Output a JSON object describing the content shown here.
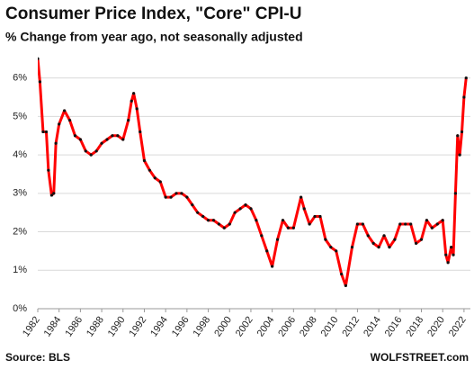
{
  "chart_data": {
    "type": "line",
    "title": "Consumer  Price Index, \"Core\" CPI-U",
    "subtitle": "% Change from year ago, not seasonally adjusted",
    "source": "Source: BLS",
    "brand": "WOLFSTREET.com",
    "xlim": [
      1982,
      2022.6
    ],
    "xticks": [
      1982,
      1984,
      1986,
      1988,
      1990,
      1992,
      1994,
      1996,
      1998,
      2000,
      2002,
      2004,
      2006,
      2008,
      2010,
      2012,
      2014,
      2016,
      2018,
      2020,
      2022
    ],
    "ylim": [
      0,
      6.6
    ],
    "yticks": [
      {
        "value": 0,
        "label": "0%"
      },
      {
        "value": 1,
        "label": "1%"
      },
      {
        "value": 2,
        "label": "2%"
      },
      {
        "value": 3,
        "label": "3%"
      },
      {
        "value": 4,
        "label": "4%"
      },
      {
        "value": 5,
        "label": "5%"
      },
      {
        "value": 6,
        "label": "6%"
      }
    ],
    "grid": true,
    "x": [
      1982.0,
      1982.2,
      1982.5,
      1982.8,
      1983.0,
      1983.3,
      1983.5,
      1983.7,
      1984.0,
      1984.5,
      1985.0,
      1985.5,
      1986.0,
      1986.5,
      1987.0,
      1987.5,
      1988.0,
      1988.5,
      1989.0,
      1989.5,
      1990.0,
      1990.5,
      1990.8,
      1991.0,
      1991.3,
      1991.6,
      1992.0,
      1992.5,
      1993.0,
      1993.5,
      1994.0,
      1994.5,
      1995.0,
      1995.5,
      1996.0,
      1996.5,
      1997.0,
      1997.5,
      1998.0,
      1998.5,
      1999.0,
      1999.5,
      2000.0,
      2000.5,
      2001.0,
      2001.5,
      2002.0,
      2002.5,
      2003.0,
      2003.5,
      2004.0,
      2004.5,
      2005.0,
      2005.5,
      2006.0,
      2006.7,
      2007.0,
      2007.5,
      2008.0,
      2008.5,
      2009.0,
      2009.5,
      2010.0,
      2010.5,
      2010.9,
      2011.5,
      2012.0,
      2012.5,
      2013.0,
      2013.5,
      2014.0,
      2014.5,
      2015.0,
      2015.5,
      2016.0,
      2016.5,
      2017.0,
      2017.5,
      2018.0,
      2018.5,
      2019.0,
      2019.5,
      2020.0,
      2020.3,
      2020.5,
      2020.8,
      2021.0,
      2021.2,
      2021.4,
      2021.6,
      2021.8,
      2022.0,
      2022.2
    ],
    "series": [
      {
        "name": "Core CPI-U",
        "color": "#ff0000",
        "values": [
          6.5,
          5.9,
          4.6,
          4.6,
          3.6,
          2.95,
          3.0,
          4.3,
          4.8,
          5.15,
          4.9,
          4.5,
          4.4,
          4.1,
          4.0,
          4.1,
          4.3,
          4.4,
          4.5,
          4.5,
          4.4,
          4.9,
          5.4,
          5.6,
          5.2,
          4.6,
          3.85,
          3.6,
          3.4,
          3.3,
          2.9,
          2.9,
          3.0,
          3.0,
          2.9,
          2.7,
          2.5,
          2.4,
          2.3,
          2.3,
          2.2,
          2.1,
          2.2,
          2.5,
          2.6,
          2.7,
          2.6,
          2.3,
          1.9,
          1.5,
          1.1,
          1.8,
          2.3,
          2.1,
          2.1,
          2.9,
          2.6,
          2.2,
          2.4,
          2.4,
          1.8,
          1.6,
          1.5,
          0.9,
          0.6,
          1.6,
          2.2,
          2.2,
          1.9,
          1.7,
          1.6,
          1.9,
          1.6,
          1.8,
          2.2,
          2.2,
          2.2,
          1.7,
          1.8,
          2.3,
          2.1,
          2.2,
          2.3,
          1.4,
          1.2,
          1.6,
          1.4,
          3.0,
          4.5,
          4.0,
          4.6,
          5.5,
          6.0
        ]
      }
    ]
  }
}
